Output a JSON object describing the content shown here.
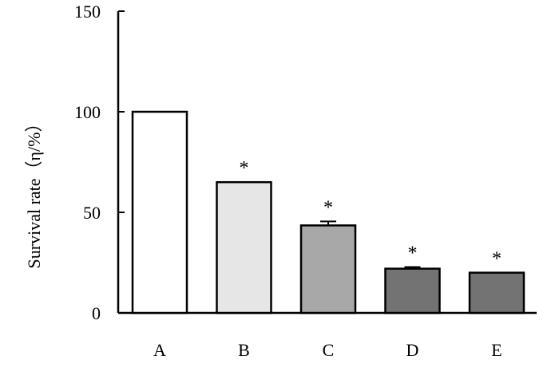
{
  "chart_data": {
    "type": "bar",
    "title": "",
    "xlabel": "",
    "ylabel": "Survival rate（η/%）",
    "ylim": [
      0,
      150
    ],
    "yticks": [
      0,
      50,
      100,
      150
    ],
    "grid": false,
    "categories": [
      "A",
      "B",
      "C",
      "D",
      "E"
    ],
    "values": [
      100,
      65,
      43.5,
      22,
      20
    ],
    "errors": [
      0,
      0,
      2,
      0.8,
      0
    ],
    "annotations": [
      "",
      "*",
      "*",
      "*",
      "*"
    ],
    "bar_colors": [
      "#ffffff",
      "#e6e6e6",
      "#a8a8a8",
      "#737373",
      "#737373"
    ]
  }
}
